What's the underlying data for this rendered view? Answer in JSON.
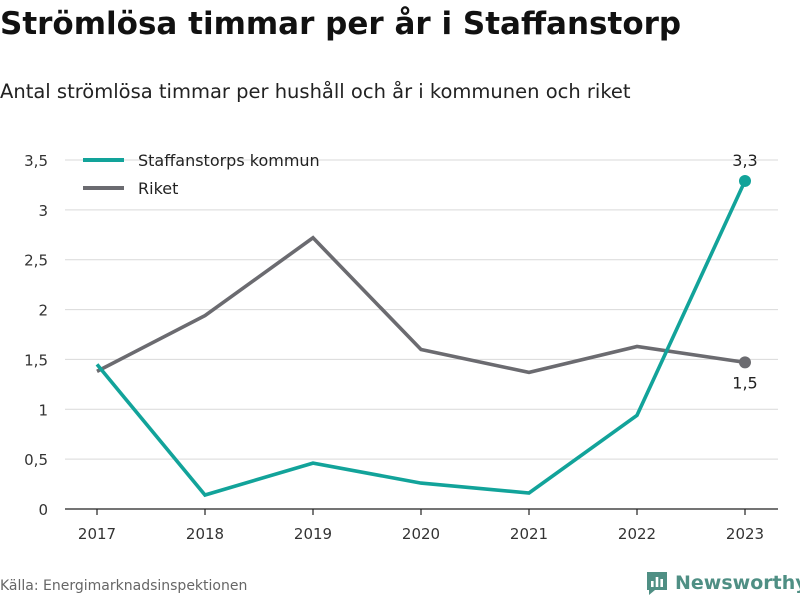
{
  "header": {
    "title": "Strömlösa timmar per år i Staffanstorp",
    "subtitle": "Antal strömlösa timmar per hushåll och år i kommunen och riket"
  },
  "footer": {
    "source": "Källa: Energimarknadsinspektionen",
    "brand": "Newsworthy",
    "brand_icon": "bar-chart-logo-icon",
    "brand_color": "#4f8f84"
  },
  "chart_data": {
    "type": "line",
    "x": [
      "2017",
      "2018",
      "2019",
      "2020",
      "2021",
      "2022",
      "2023"
    ],
    "ylim": [
      0,
      3.5
    ],
    "yticks": [
      0,
      0.5,
      1,
      1.5,
      2,
      2.5,
      3,
      3.5
    ],
    "ytick_labels": [
      "0",
      "0,5",
      "1",
      "1,5",
      "2",
      "2,5",
      "3",
      "3,5"
    ],
    "grid": true,
    "legend_position": "top-left",
    "series": [
      {
        "name": "Staffanstorps kommun",
        "color": "#12a39a",
        "values": [
          1.45,
          0.14,
          0.46,
          0.26,
          0.16,
          0.94,
          3.29
        ],
        "end_label": "3,3"
      },
      {
        "name": "Riket",
        "color": "#6b6b70",
        "values": [
          1.38,
          1.94,
          2.72,
          1.6,
          1.37,
          1.63,
          1.47
        ],
        "end_label": "1,5"
      }
    ]
  }
}
